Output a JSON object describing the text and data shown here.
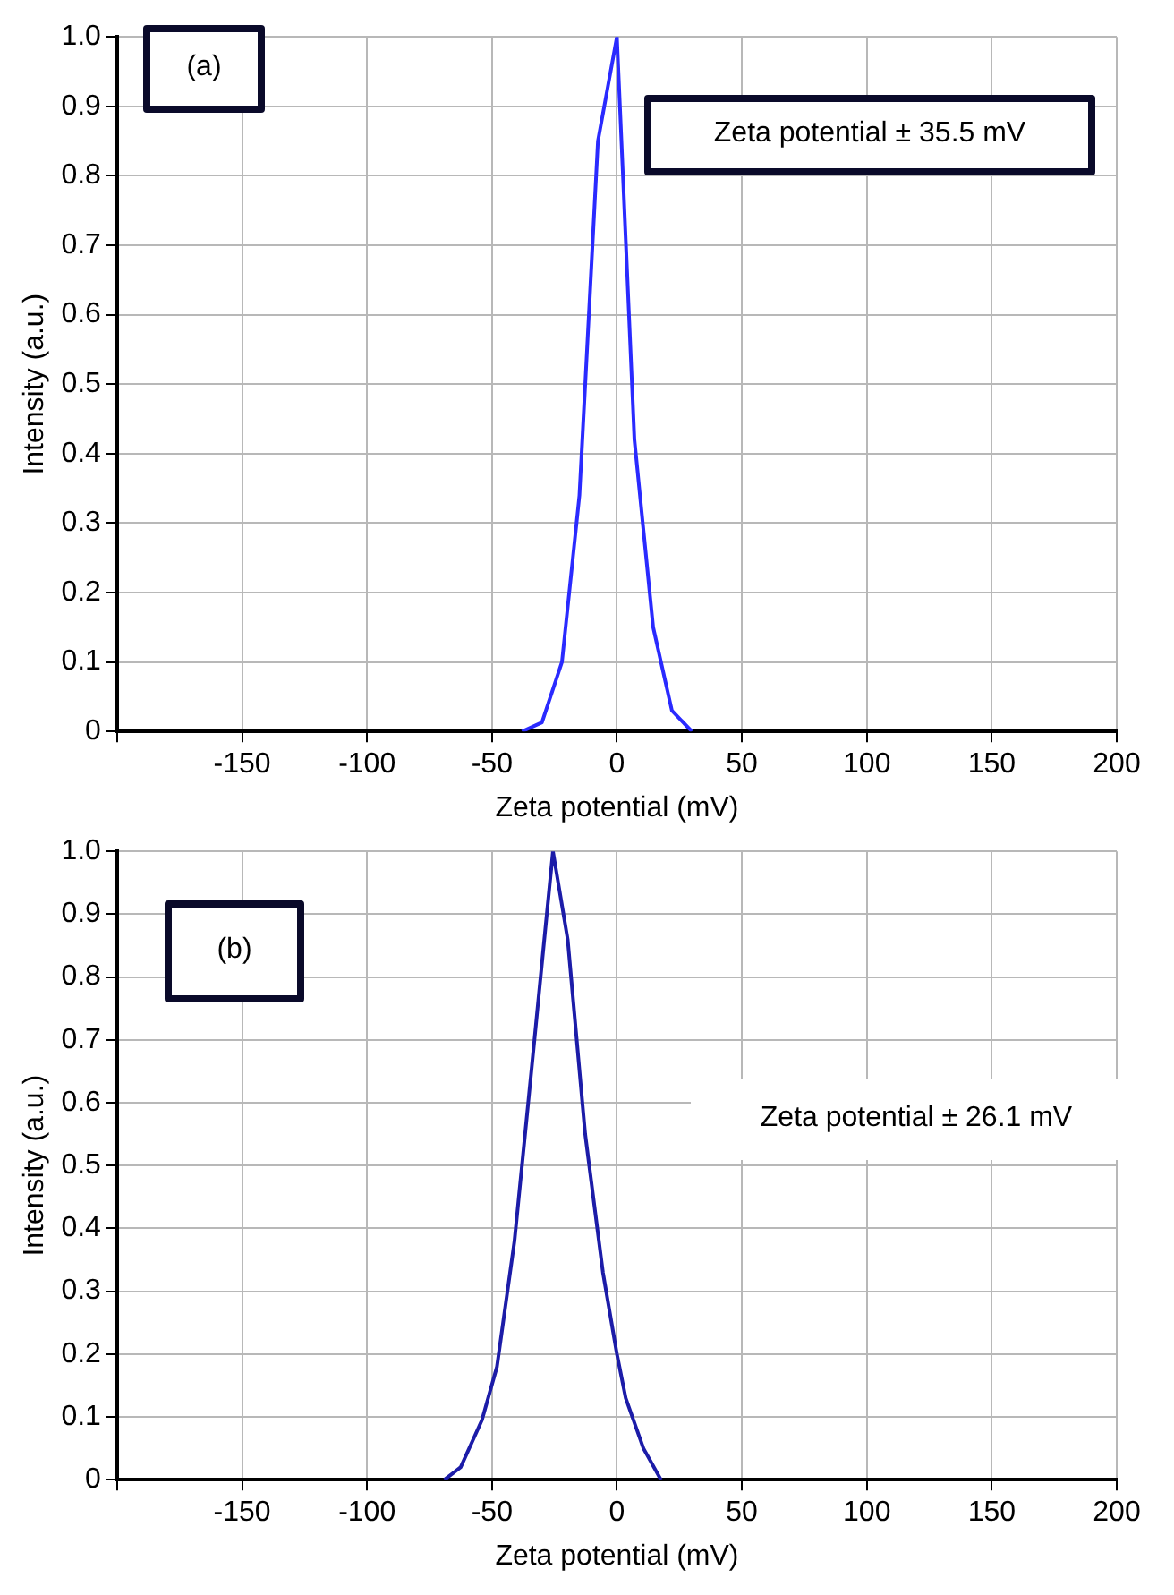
{
  "chart_data": [
    {
      "type": "line",
      "xlabel": "Zeta potential (mV)",
      "ylabel": "Intensity (a.u.)",
      "annotations": [
        "(a)",
        "Zeta potential ± 35.5 mV"
      ],
      "series": [
        {
          "color": "#2a2aff",
          "x": [
            -38,
            -30,
            -22,
            -15,
            -7.6,
            0,
            7,
            14.5,
            22,
            30
          ],
          "values": [
            0,
            0.013,
            0.1,
            0.34,
            0.85,
            1.0,
            0.42,
            0.15,
            0.03,
            0
          ]
        }
      ],
      "xlim": [
        -200,
        200
      ],
      "xticks": [
        {
          "value": -200,
          "label": null
        },
        -150,
        -100,
        -50,
        0,
        50,
        100,
        150,
        200
      ],
      "ylim": [
        0,
        1
      ],
      "yticks": [
        0,
        0.1,
        0.2,
        0.3,
        0.4,
        0.5,
        0.6,
        0.7,
        0.8,
        0.9,
        {
          "value": 1,
          "label": "1.0"
        }
      ],
      "grid": true,
      "legend": false
    },
    {
      "type": "line",
      "xlabel": "Zeta potential (mV)",
      "ylabel": "Intensity (a.u.)",
      "annotations": [
        "(b)",
        "Zeta potential ± 26.1 mV"
      ],
      "series": [
        {
          "color": "#1c1ca8",
          "x": [
            -69,
            -62.5,
            -54,
            -48,
            -41,
            -34,
            -25.6,
            -19.7,
            -12.7,
            -5.6,
            0,
            3.5,
            10.6,
            17.6
          ],
          "values": [
            0,
            0.02,
            0.095,
            0.18,
            0.38,
            0.66,
            1.0,
            0.86,
            0.55,
            0.33,
            0.2,
            0.13,
            0.05,
            0
          ]
        }
      ],
      "xlim": [
        -200,
        200
      ],
      "xticks": [
        {
          "value": -200,
          "label": null
        },
        -150,
        -100,
        -50,
        0,
        50,
        100,
        150,
        200
      ],
      "ylim": [
        0,
        1
      ],
      "yticks": [
        0,
        0.1,
        0.2,
        0.3,
        0.4,
        0.5,
        0.6,
        0.7,
        0.8,
        0.9,
        {
          "value": 1,
          "label": "1.0"
        }
      ],
      "grid": true,
      "legend": false
    }
  ]
}
